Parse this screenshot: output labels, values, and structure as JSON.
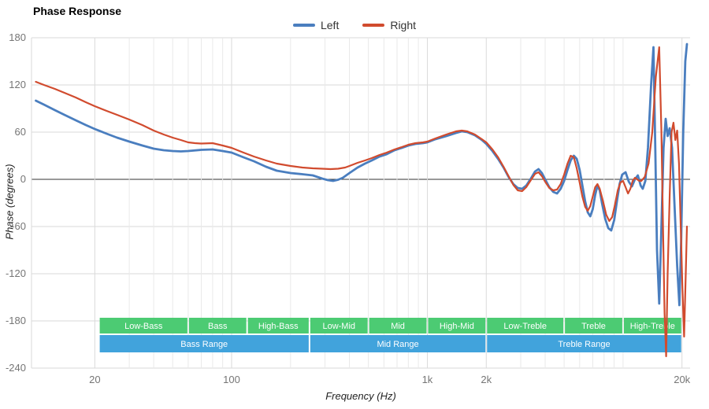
{
  "title": "Phase Response",
  "axes": {
    "x_label": "Frequency (Hz)",
    "y_label": "Phase (degrees)"
  },
  "colors": {
    "grid": "#dadada",
    "grid_minor": "#e9e9e9",
    "zero_line": "#333333",
    "tick_text": "#757575",
    "band_green": "#4ccb73",
    "band_blue": "#41a3dc",
    "band_text": "#ffffff"
  },
  "bands": {
    "sub": [
      {
        "label": "Low-Bass",
        "from": 21,
        "to": 60
      },
      {
        "label": "Bass",
        "from": 60,
        "to": 120
      },
      {
        "label": "High-Bass",
        "from": 120,
        "to": 250
      },
      {
        "label": "Low-Mid",
        "from": 250,
        "to": 500
      },
      {
        "label": "Mid",
        "from": 500,
        "to": 1000
      },
      {
        "label": "High-Mid",
        "from": 1000,
        "to": 2000
      },
      {
        "label": "Low-Treble",
        "from": 2000,
        "to": 5000
      },
      {
        "label": "Treble",
        "from": 5000,
        "to": 10000
      },
      {
        "label": "High-Treble",
        "from": 10000,
        "to": 20000
      }
    ],
    "main": [
      {
        "label": "Bass Range",
        "from": 21,
        "to": 250
      },
      {
        "label": "Mid Range",
        "from": 250,
        "to": 2000
      },
      {
        "label": "Treble Range",
        "from": 2000,
        "to": 20000
      }
    ]
  },
  "chart_data": {
    "type": "line",
    "title": "Phase Response",
    "xlabel": "Frequency (Hz)",
    "ylabel": "Phase (degrees)",
    "x_scale": "log",
    "xlim": [
      9.5,
      22000
    ],
    "ylim": [
      -240,
      180
    ],
    "grid": true,
    "legend_position": "top-center",
    "y_ticks": [
      180,
      120,
      60,
      0,
      -60,
      -120,
      -180,
      -240
    ],
    "x_major_ticks": [
      {
        "value": 20,
        "label": "20"
      },
      {
        "value": 100,
        "label": "100"
      },
      {
        "value": 1000,
        "label": "1k"
      },
      {
        "value": 2000,
        "label": "2k"
      },
      {
        "value": 20000,
        "label": "20k"
      }
    ],
    "x_minor_gridlines": [
      30,
      40,
      50,
      60,
      70,
      80,
      90,
      200,
      300,
      400,
      500,
      600,
      700,
      800,
      900,
      3000,
      4000,
      5000,
      6000,
      7000,
      8000,
      9000,
      10000
    ],
    "series": [
      {
        "name": "Left",
        "color": "#4a7ebf",
        "width": 2.8,
        "points": [
          [
            10,
            100
          ],
          [
            11,
            95
          ],
          [
            12.5,
            88
          ],
          [
            14,
            82
          ],
          [
            16,
            75
          ],
          [
            18,
            69
          ],
          [
            20,
            64
          ],
          [
            23,
            58
          ],
          [
            26,
            53
          ],
          [
            30,
            48
          ],
          [
            35,
            43
          ],
          [
            40,
            39
          ],
          [
            45,
            37
          ],
          [
            50,
            36
          ],
          [
            55,
            35.5
          ],
          [
            60,
            36
          ],
          [
            70,
            37.5
          ],
          [
            80,
            38
          ],
          [
            90,
            36
          ],
          [
            100,
            34
          ],
          [
            115,
            28
          ],
          [
            130,
            23
          ],
          [
            150,
            16
          ],
          [
            170,
            11
          ],
          [
            200,
            8
          ],
          [
            230,
            6.5
          ],
          [
            260,
            5
          ],
          [
            290,
            1
          ],
          [
            310,
            -1
          ],
          [
            330,
            -2
          ],
          [
            350,
            -0.5
          ],
          [
            370,
            2
          ],
          [
            400,
            8
          ],
          [
            440,
            15
          ],
          [
            480,
            20
          ],
          [
            520,
            24
          ],
          [
            570,
            29
          ],
          [
            620,
            32
          ],
          [
            680,
            37
          ],
          [
            740,
            40
          ],
          [
            800,
            43
          ],
          [
            870,
            45
          ],
          [
            950,
            46
          ],
          [
            1000,
            47
          ],
          [
            1100,
            51
          ],
          [
            1250,
            55
          ],
          [
            1400,
            59
          ],
          [
            1500,
            61
          ],
          [
            1600,
            60
          ],
          [
            1750,
            56
          ],
          [
            1900,
            50
          ],
          [
            2000,
            45
          ],
          [
            2150,
            36
          ],
          [
            2300,
            26
          ],
          [
            2450,
            15
          ],
          [
            2600,
            3
          ],
          [
            2750,
            -6
          ],
          [
            2900,
            -11
          ],
          [
            3050,
            -12
          ],
          [
            3200,
            -8
          ],
          [
            3400,
            2
          ],
          [
            3550,
            10
          ],
          [
            3700,
            13
          ],
          [
            3850,
            8
          ],
          [
            4000,
            0
          ],
          [
            4200,
            -10
          ],
          [
            4400,
            -16
          ],
          [
            4600,
            -18
          ],
          [
            4800,
            -12
          ],
          [
            5000,
            -2
          ],
          [
            5200,
            12
          ],
          [
            5400,
            24
          ],
          [
            5600,
            30
          ],
          [
            5800,
            26
          ],
          [
            6000,
            12
          ],
          [
            6200,
            -8
          ],
          [
            6400,
            -28
          ],
          [
            6600,
            -42
          ],
          [
            6800,
            -47
          ],
          [
            7000,
            -38
          ],
          [
            7200,
            -20
          ],
          [
            7400,
            -8
          ],
          [
            7600,
            -14
          ],
          [
            7800,
            -30
          ],
          [
            8100,
            -50
          ],
          [
            8400,
            -62
          ],
          [
            8700,
            -65
          ],
          [
            9000,
            -52
          ],
          [
            9300,
            -28
          ],
          [
            9600,
            -6
          ],
          [
            9900,
            6
          ],
          [
            10300,
            9
          ],
          [
            10700,
            -3
          ],
          [
            11100,
            -9
          ],
          [
            11500,
            0
          ],
          [
            11900,
            5
          ],
          [
            12300,
            -8
          ],
          [
            12600,
            -12
          ],
          [
            13000,
            -2
          ],
          [
            13400,
            40
          ],
          [
            13900,
            120
          ],
          [
            14300,
            168
          ],
          [
            14600,
            40
          ],
          [
            14900,
            -90
          ],
          [
            15300,
            -158
          ],
          [
            15700,
            -60
          ],
          [
            16100,
            40
          ],
          [
            16500,
            77
          ],
          [
            16900,
            55
          ],
          [
            17300,
            65
          ],
          [
            17800,
            40
          ],
          [
            18300,
            -30
          ],
          [
            18900,
            -110
          ],
          [
            19400,
            -160
          ],
          [
            19800,
            -80
          ],
          [
            20300,
            60
          ],
          [
            20800,
            150
          ],
          [
            21200,
            172
          ]
        ]
      },
      {
        "name": "Right",
        "color": "#d14b2e",
        "width": 2.2,
        "points": [
          [
            10,
            124
          ],
          [
            11,
            120
          ],
          [
            12.5,
            115
          ],
          [
            14,
            110
          ],
          [
            16,
            104
          ],
          [
            18,
            98
          ],
          [
            20,
            93
          ],
          [
            23,
            87
          ],
          [
            26,
            82
          ],
          [
            30,
            76
          ],
          [
            35,
            69
          ],
          [
            40,
            62
          ],
          [
            45,
            57
          ],
          [
            50,
            53
          ],
          [
            55,
            50
          ],
          [
            60,
            47
          ],
          [
            65,
            46
          ],
          [
            70,
            45.5
          ],
          [
            80,
            46
          ],
          [
            90,
            43
          ],
          [
            100,
            40
          ],
          [
            115,
            34
          ],
          [
            130,
            29
          ],
          [
            150,
            24
          ],
          [
            170,
            20
          ],
          [
            200,
            17
          ],
          [
            230,
            15
          ],
          [
            260,
            14
          ],
          [
            290,
            13.5
          ],
          [
            320,
            13
          ],
          [
            350,
            13.5
          ],
          [
            380,
            15
          ],
          [
            400,
            17
          ],
          [
            440,
            21
          ],
          [
            480,
            24
          ],
          [
            520,
            27
          ],
          [
            570,
            31
          ],
          [
            620,
            34
          ],
          [
            680,
            38
          ],
          [
            740,
            41
          ],
          [
            800,
            44
          ],
          [
            870,
            46
          ],
          [
            950,
            47
          ],
          [
            1000,
            48
          ],
          [
            1100,
            52
          ],
          [
            1250,
            57
          ],
          [
            1400,
            61
          ],
          [
            1500,
            62
          ],
          [
            1600,
            61
          ],
          [
            1750,
            57
          ],
          [
            1900,
            51
          ],
          [
            2000,
            47
          ],
          [
            2150,
            38
          ],
          [
            2300,
            28
          ],
          [
            2450,
            16
          ],
          [
            2600,
            4
          ],
          [
            2750,
            -7
          ],
          [
            2900,
            -14
          ],
          [
            3050,
            -15
          ],
          [
            3200,
            -10
          ],
          [
            3400,
            0
          ],
          [
            3550,
            7
          ],
          [
            3700,
            9
          ],
          [
            3850,
            4
          ],
          [
            4000,
            -3
          ],
          [
            4200,
            -11
          ],
          [
            4400,
            -14
          ],
          [
            4600,
            -13
          ],
          [
            4800,
            -6
          ],
          [
            5000,
            6
          ],
          [
            5200,
            20
          ],
          [
            5400,
            30
          ],
          [
            5600,
            28
          ],
          [
            5800,
            14
          ],
          [
            6000,
            -4
          ],
          [
            6200,
            -22
          ],
          [
            6400,
            -35
          ],
          [
            6600,
            -40
          ],
          [
            6800,
            -34
          ],
          [
            7000,
            -22
          ],
          [
            7200,
            -10
          ],
          [
            7400,
            -6
          ],
          [
            7600,
            -12
          ],
          [
            7900,
            -28
          ],
          [
            8200,
            -45
          ],
          [
            8500,
            -53
          ],
          [
            8800,
            -48
          ],
          [
            9100,
            -32
          ],
          [
            9400,
            -14
          ],
          [
            9700,
            -4
          ],
          [
            10000,
            -2
          ],
          [
            10300,
            -10
          ],
          [
            10600,
            -18
          ],
          [
            10900,
            -12
          ],
          [
            11200,
            -2
          ],
          [
            11500,
            2
          ],
          [
            11800,
            0
          ],
          [
            12100,
            -2
          ],
          [
            12400,
            -2
          ],
          [
            12900,
            3
          ],
          [
            13500,
            20
          ],
          [
            14100,
            60
          ],
          [
            14700,
            130
          ],
          [
            15300,
            168
          ],
          [
            15700,
            60
          ],
          [
            16000,
            -60
          ],
          [
            16300,
            -170
          ],
          [
            16600,
            -225
          ],
          [
            16900,
            -120
          ],
          [
            17300,
            -20
          ],
          [
            17700,
            60
          ],
          [
            18100,
            72
          ],
          [
            18500,
            50
          ],
          [
            18900,
            62
          ],
          [
            19300,
            20
          ],
          [
            19700,
            -60
          ],
          [
            20100,
            -140
          ],
          [
            20500,
            -200
          ],
          [
            20900,
            -120
          ],
          [
            21200,
            -60
          ]
        ]
      }
    ]
  }
}
